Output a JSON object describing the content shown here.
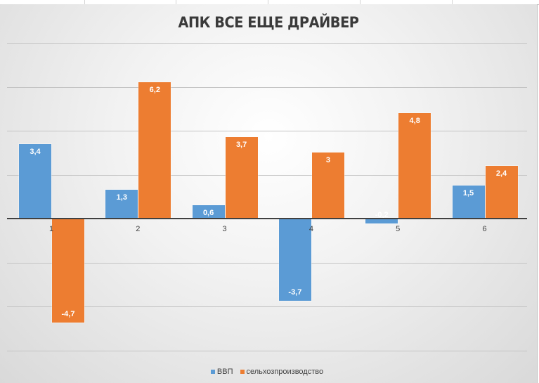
{
  "chart_data": {
    "type": "bar",
    "title": "АПК ВСЕ ЕЩЕ ДРАЙВЕР",
    "categories": [
      "1",
      "2",
      "3",
      "4",
      "5",
      "6"
    ],
    "series": [
      {
        "name": "ВВП",
        "color": "#5b9bd5",
        "values": [
          3.4,
          1.3,
          0.6,
          -3.7,
          -0.2,
          1.5
        ]
      },
      {
        "name": "сельхозпроизводство",
        "color": "#ed7d31",
        "values": [
          -4.7,
          6.2,
          3.7,
          3,
          4.8,
          2.4
        ]
      }
    ],
    "data_labels": {
      "ВВП": [
        "3,4",
        "1,3",
        "0,6",
        "-3,7",
        "-0,2",
        "1,5"
      ],
      "сельхозпроизводство": [
        "-4,7",
        "6,2",
        "3,7",
        "3",
        "4,8",
        "2,4"
      ]
    },
    "xlabel": "",
    "ylabel": "",
    "ylim": [
      -6,
      8
    ],
    "gridlines": true,
    "axis_tick_labels_visible": false,
    "legend_position": "bottom"
  },
  "title": "АПК ВСЕ ЕЩЕ ДРАЙВЕР",
  "legend": [
    {
      "label": "ВВП",
      "color": "#5b9bd5"
    },
    {
      "label": "сельхозпроизводство",
      "color": "#ed7d31"
    }
  ],
  "categories": [
    "1",
    "2",
    "3",
    "4",
    "5",
    "6"
  ],
  "gdp_labels": [
    "3,4",
    "1,3",
    "0,6",
    "-3,7",
    "-0,2",
    "1,5"
  ],
  "agr_labels": [
    "-4,7",
    "6,2",
    "3,7",
    "3",
    "4,8",
    "2,4"
  ]
}
